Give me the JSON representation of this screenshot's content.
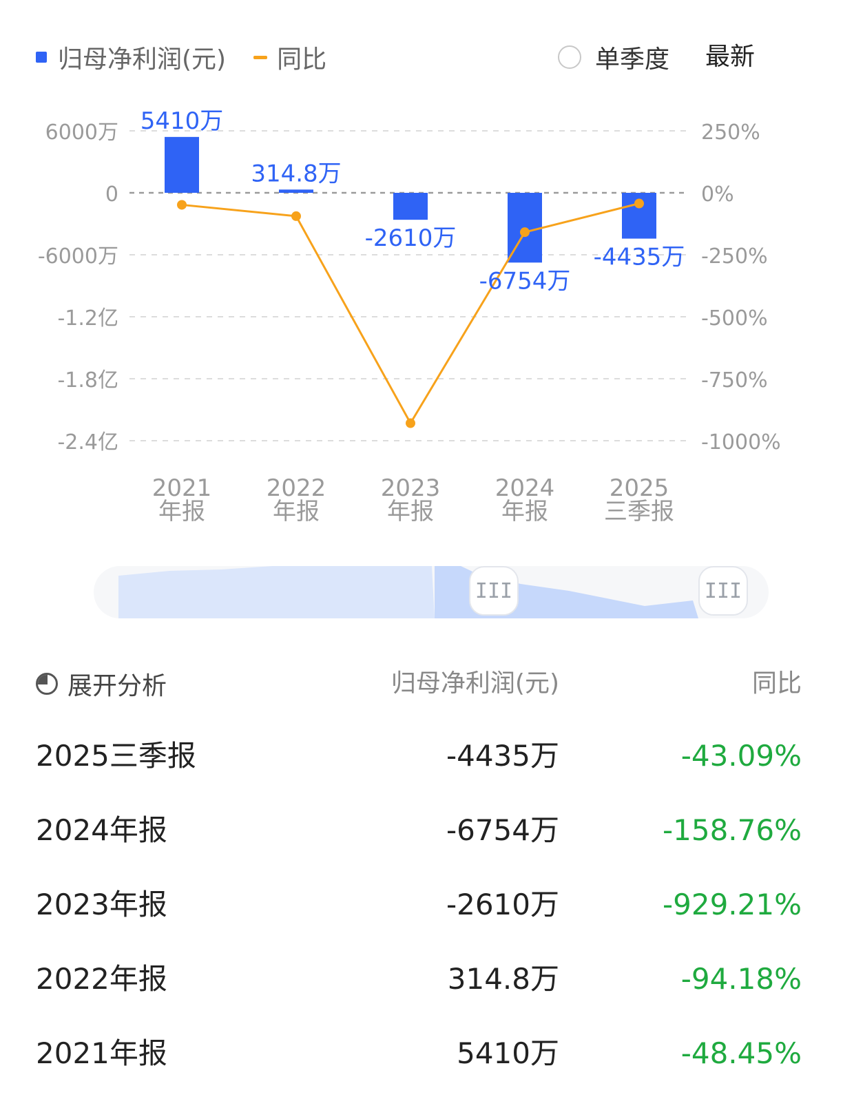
{
  "legend": {
    "bar_label": "归母净利润(元)",
    "line_label": "同比"
  },
  "toggle": {
    "label": "单季度"
  },
  "latest_label": "最新",
  "colors": {
    "bar": "#2f63f5",
    "line": "#f7a21b",
    "positive_down": "#1faa3f"
  },
  "chart_data": {
    "type": "bar",
    "categories": [
      "2021年报",
      "2022年报",
      "2023年报",
      "2024年报",
      "2025三季报"
    ],
    "category_lines": [
      [
        "2021",
        "年报"
      ],
      [
        "2022",
        "年报"
      ],
      [
        "2023",
        "年报"
      ],
      [
        "2024",
        "年报"
      ],
      [
        "2025",
        "三季报"
      ]
    ],
    "series": [
      {
        "name": "归母净利润(元)",
        "axis": "left",
        "values": [
          54100000,
          3148000,
          -26100000,
          -67540000,
          -44350000
        ],
        "labels": [
          "5410万",
          "314.8万",
          "-2610万",
          "-6754万",
          "-4435万"
        ]
      },
      {
        "name": "同比",
        "axis": "right",
        "type": "line",
        "values": [
          -48.45,
          -94.18,
          -929.21,
          -158.76,
          -43.09
        ]
      }
    ],
    "y_left": {
      "ylim": [
        -240000000,
        60000000
      ],
      "ticks": [
        60000000,
        0,
        -60000000,
        -120000000,
        -180000000,
        -240000000
      ],
      "tick_labels": [
        "6000万",
        "0",
        "-6000万",
        "-1.2亿",
        "-1.8亿",
        "-2.4亿"
      ]
    },
    "y_right": {
      "ylim": [
        -1000,
        250
      ],
      "ticks": [
        250,
        0,
        -250,
        -500,
        -750,
        -1000
      ],
      "tick_labels": [
        "250%",
        "0%",
        "-250%",
        "-500%",
        "-750%",
        "-1000%"
      ]
    },
    "grid": true
  },
  "table": {
    "header": {
      "expand": "展开分析",
      "col_value": "归母净利润(元)",
      "col_yoy": "同比"
    },
    "rows": [
      {
        "name": "2025三季报",
        "value": "-4435万",
        "yoy": "-43.09%"
      },
      {
        "name": "2024年报",
        "value": "-6754万",
        "yoy": "-158.76%"
      },
      {
        "name": "2023年报",
        "value": "-2610万",
        "yoy": "-929.21%"
      },
      {
        "name": "2022年报",
        "value": "314.8万",
        "yoy": "-94.18%"
      },
      {
        "name": "2021年报",
        "value": "5410万",
        "yoy": "-48.45%"
      }
    ]
  }
}
